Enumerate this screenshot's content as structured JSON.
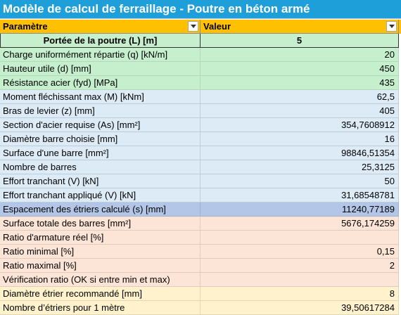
{
  "title": "Modèle de calcul de ferraillage - Poutre en béton armé",
  "headers": {
    "parameter": "Paramètre",
    "value": "Valeur"
  },
  "rows": [
    {
      "label": "Portée de la poutre (L) [m]",
      "value": "5"
    },
    {
      "label": "Charge uniformément répartie (q) [kN/m]",
      "value": "20"
    },
    {
      "label": "Hauteur utile (d) [mm]",
      "value": "450"
    },
    {
      "label": "Résistance acier (fyd) [MPa]",
      "value": "435"
    },
    {
      "label": "Moment fléchissant max (M) [kNm]",
      "value": "62,5"
    },
    {
      "label": "Bras de levier (z) [mm]",
      "value": "405"
    },
    {
      "label": "Section d'acier requise (As) [mm²]",
      "value": "354,7608912"
    },
    {
      "label": "Diamètre barre choisie [mm]",
      "value": "16"
    },
    {
      "label": "Surface d'une barre [mm²]",
      "value": "98846,51354"
    },
    {
      "label": "Nombre de barres",
      "value": "25,3125"
    },
    {
      "label": "Effort tranchant (V) [kN]",
      "value": "50"
    },
    {
      "label": "Effort tranchant appliqué (V) [kN]",
      "value": "31,68548781"
    },
    {
      "label": "Espacement des étriers calculé (s) [mm]",
      "value": "11240,77189"
    },
    {
      "label": "Surface totale des barres [mm²]",
      "value": "5676,174259"
    },
    {
      "label": "Ratio d'armature réel [%]",
      "value": ""
    },
    {
      "label": "Ratio minimal [%]",
      "value": "0,15"
    },
    {
      "label": "Ratio maximal [%]",
      "value": "2"
    },
    {
      "label": "Vérification ratio (OK si entre min et max)",
      "value": ""
    },
    {
      "label": "Diamètre étrier recommandé [mm]",
      "value": "8"
    },
    {
      "label": "Nombre d’étriers pour 1 mètre",
      "value": "39,50617284"
    }
  ],
  "colors": {
    "title_bg": "#1f9fd9",
    "header_bg": "#ffc000",
    "green": "#c6efce",
    "blue": "#ddebf7",
    "blue_selected": "#b4c6e7",
    "orange": "#fce4d6",
    "yellow": "#fff2cc"
  },
  "icons": {
    "filter": "dropdown-arrow-icon"
  }
}
